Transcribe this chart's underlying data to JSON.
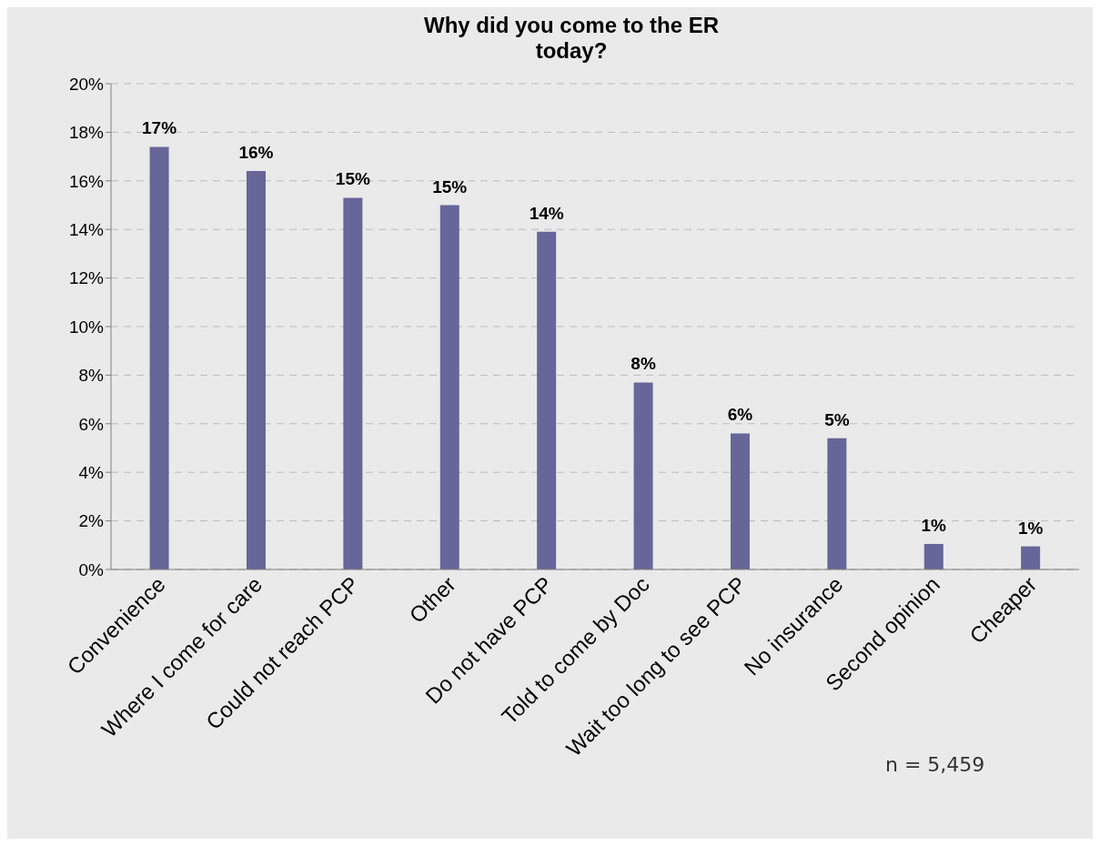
{
  "chart_data": {
    "type": "bar",
    "title": "Why did you come to the ER today?",
    "categories": [
      "Convenience",
      "Where I come for care",
      "Could not reach PCP",
      "Other",
      "Do not have PCP",
      "Told to come by Doc",
      "Wait too long to see PCP",
      "No insurance",
      "Second opinion",
      "Cheaper"
    ],
    "values": [
      17.4,
      16.4,
      15.3,
      15.0,
      13.9,
      7.7,
      5.6,
      5.4,
      1.05,
      0.95
    ],
    "value_labels": [
      "17%",
      "16%",
      "15%",
      "15%",
      "14%",
      "8%",
      "6%",
      "5%",
      "1%",
      "1%"
    ],
    "color": "#666699",
    "ylim": [
      0,
      20
    ],
    "yticks": [
      {
        "value": 0,
        "label": "0%"
      },
      {
        "value": 2,
        "label": "2%"
      },
      {
        "value": 4,
        "label": "4%"
      },
      {
        "value": 6,
        "label": "6%"
      },
      {
        "value": 8,
        "label": "8%"
      },
      {
        "value": 10,
        "label": "10%"
      },
      {
        "value": 12,
        "label": "12%"
      },
      {
        "value": 14,
        "label": "14%"
      },
      {
        "value": 16,
        "label": "16%"
      },
      {
        "value": 18,
        "label": "18%"
      },
      {
        "value": 20,
        "label": "20%"
      }
    ],
    "grid": "y",
    "annotations": [
      "n = 5,459"
    ]
  }
}
